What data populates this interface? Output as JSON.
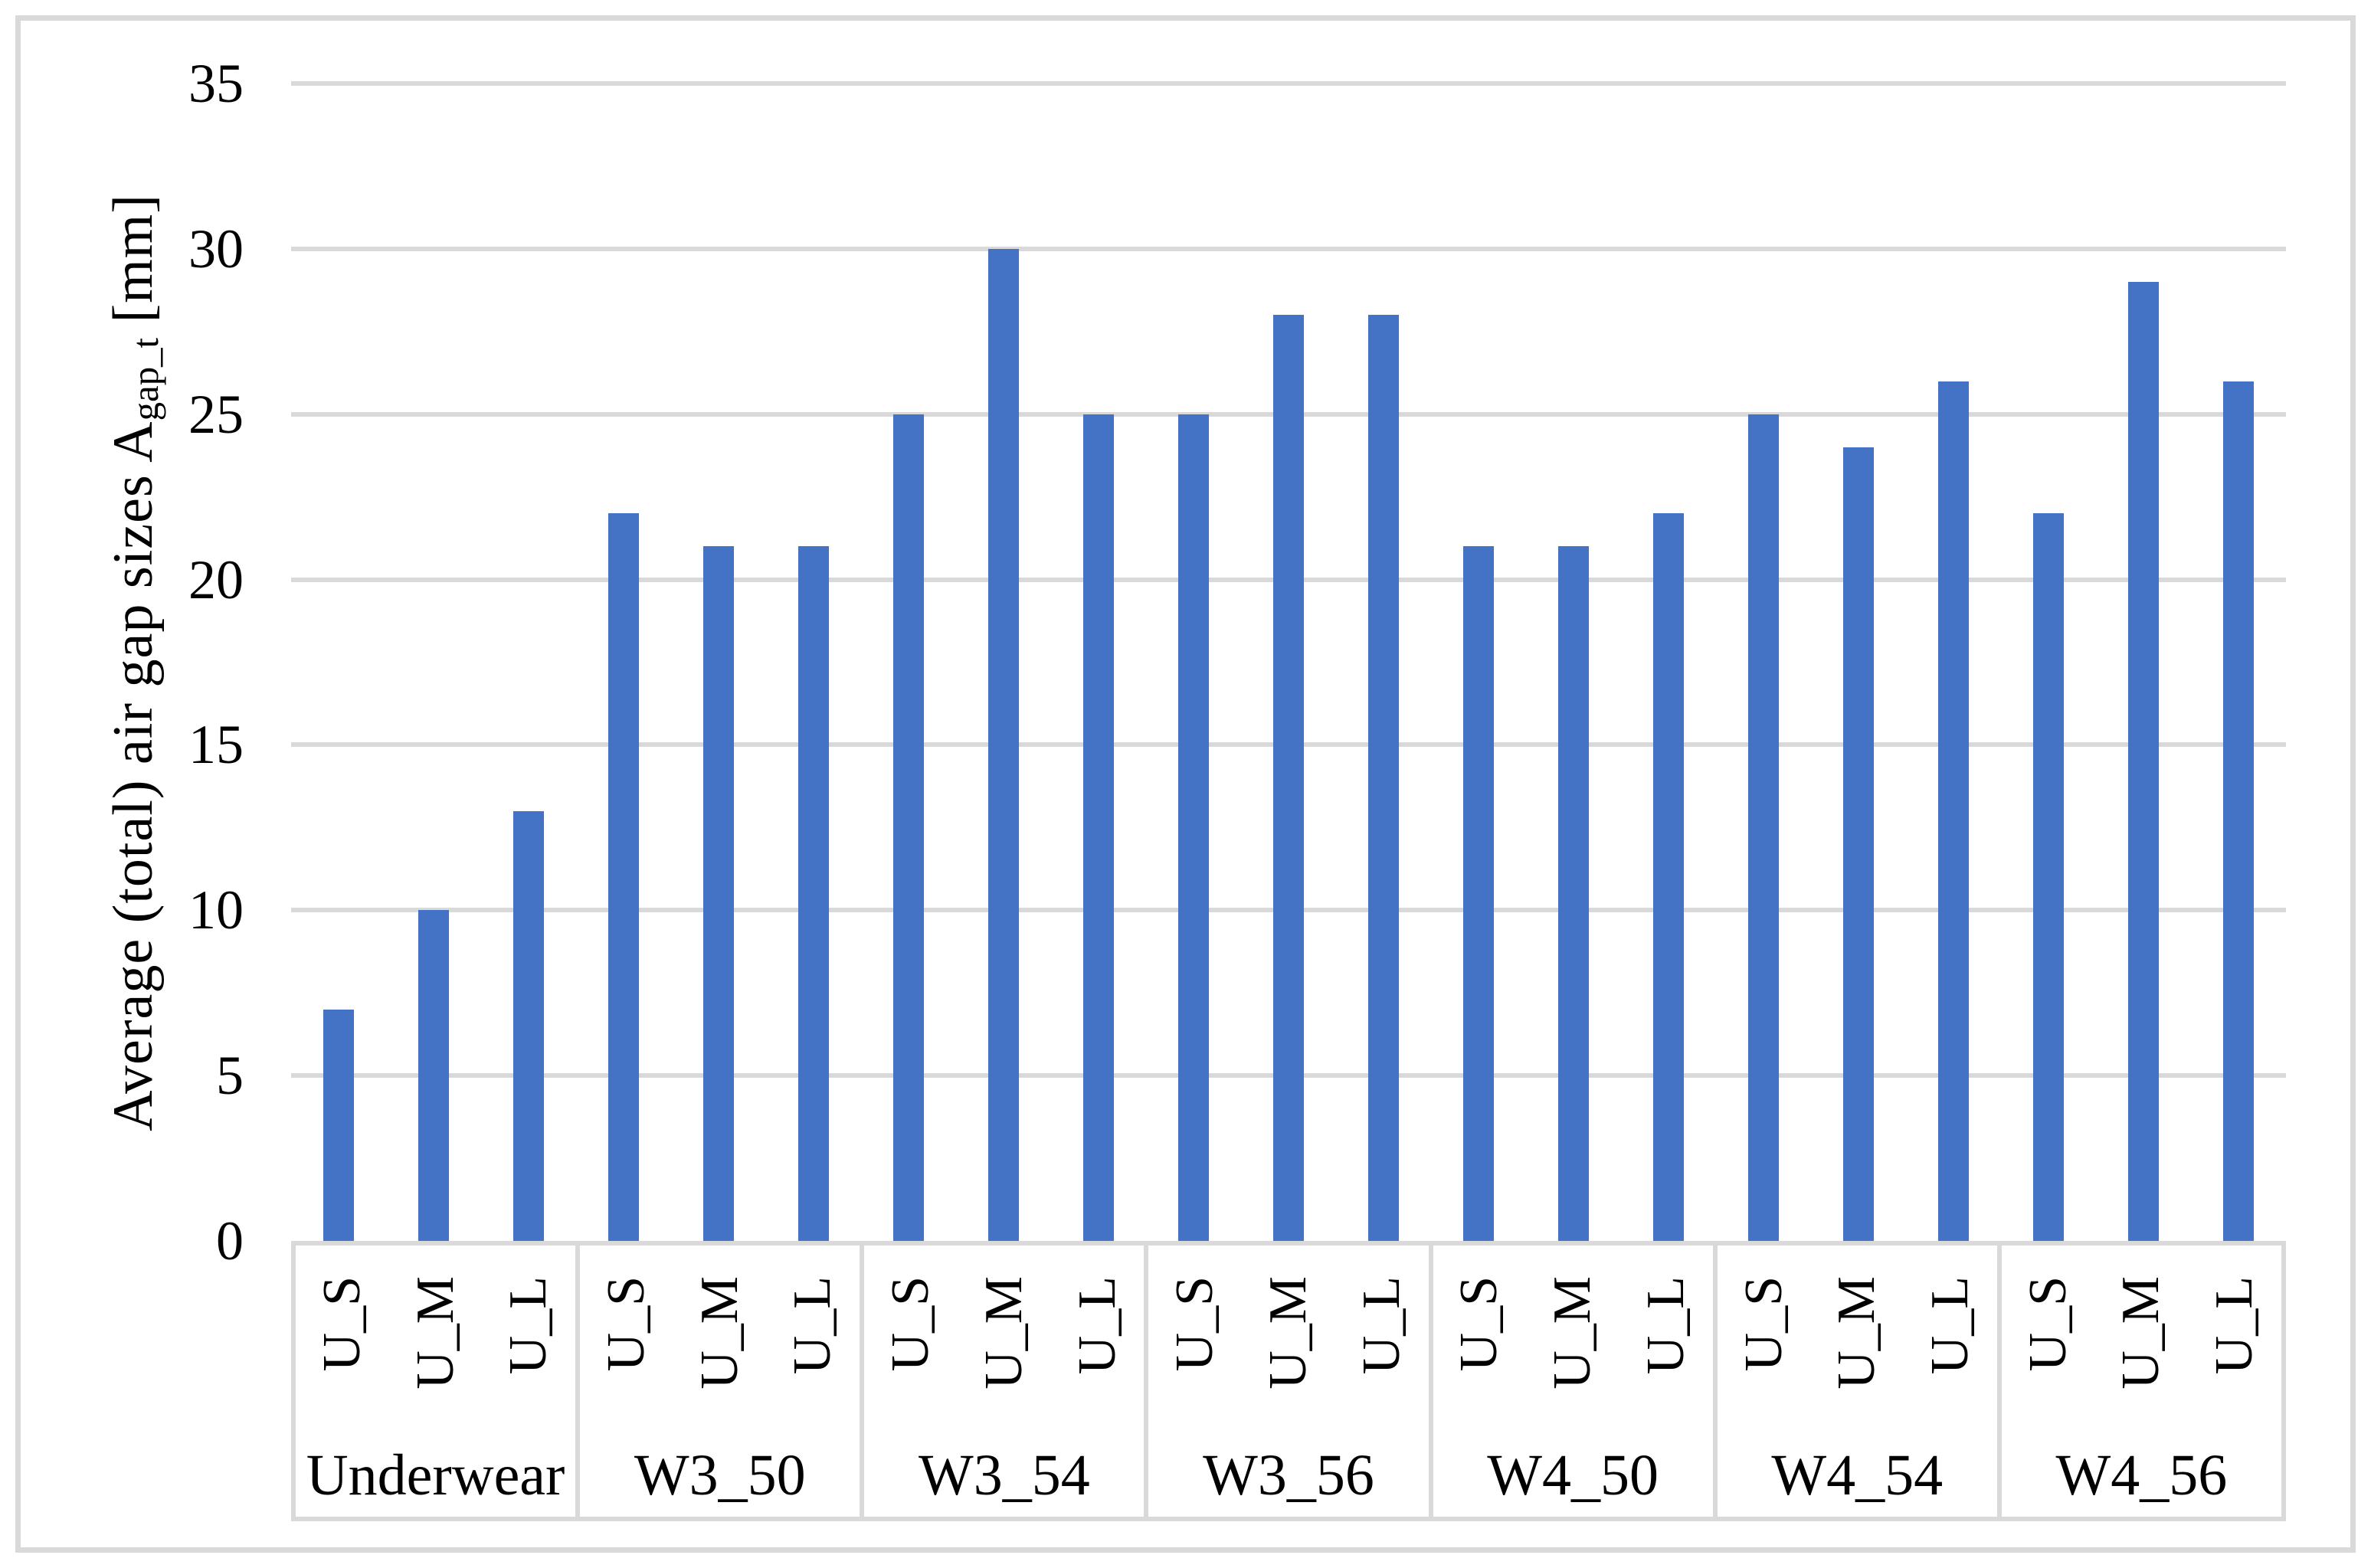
{
  "figure": {
    "background": "#ffffff",
    "frame_border_color": "#d9d9d9"
  },
  "chart_data": {
    "type": "bar",
    "title": "",
    "ylabel": "Average (total) air gap sizes A_gap_t [mm]",
    "ylabel_parts": {
      "prefix": "Average (total) air gap sizes A",
      "subscript": "gap_t",
      "suffix": " [mm]"
    },
    "xlabel": "",
    "ylim": [
      0,
      35
    ],
    "ytick_step": 5,
    "yticks": [
      "0",
      "5",
      "10",
      "15",
      "20",
      "25",
      "30",
      "35"
    ],
    "grid": "horizontal",
    "legend": "none",
    "bar_color": "#4472C4",
    "gridline_color": "#d9d9d9",
    "axis_text_color": "#000000",
    "sub_categories": [
      "U_S",
      "U_M",
      "U_L"
    ],
    "groups": [
      {
        "label": "Underwear",
        "values": [
          7,
          10,
          13
        ]
      },
      {
        "label": "W3_50",
        "values": [
          22,
          21,
          21
        ]
      },
      {
        "label": "W3_54",
        "values": [
          25,
          30,
          25
        ]
      },
      {
        "label": "W3_56",
        "values": [
          25,
          28,
          28
        ]
      },
      {
        "label": "W4_50",
        "values": [
          21,
          21,
          22
        ]
      },
      {
        "label": "W4_54",
        "values": [
          25,
          24,
          26
        ]
      },
      {
        "label": "W4_56",
        "values": [
          22,
          29,
          26
        ]
      }
    ]
  }
}
